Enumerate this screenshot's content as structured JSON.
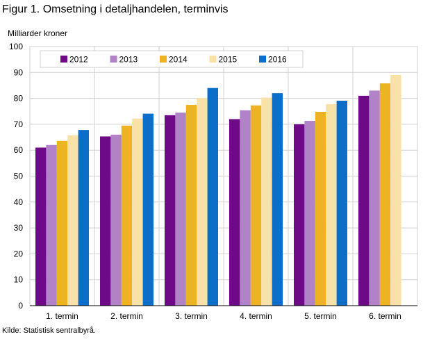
{
  "header": {
    "title": "Figur 1. Omsetning i detaljhandelen, terminvis",
    "unit_label": "Milliarder  kroner"
  },
  "footer": {
    "source": "Kilde: Statistisk sentralbyrå."
  },
  "chart_data": {
    "type": "bar",
    "title": "",
    "xlabel": "",
    "ylabel": "Milliarder  kroner",
    "ylim": [
      0,
      100
    ],
    "yticks": [
      0,
      10,
      20,
      30,
      40,
      50,
      60,
      70,
      80,
      90,
      100
    ],
    "grid": true,
    "legend_position": "top-left",
    "categories": [
      "1. termin",
      "2. termin",
      "3. termin",
      "4. termin",
      "5. termin",
      "6. termin"
    ],
    "series": [
      {
        "name": "2012",
        "color": "#6e0a87",
        "values": [
          61.0,
          65.3,
          73.5,
          72.0,
          70.0,
          81.0
        ]
      },
      {
        "name": "2013",
        "color": "#b282c8",
        "values": [
          62.0,
          66.0,
          74.5,
          75.4,
          71.3,
          83.0
        ]
      },
      {
        "name": "2014",
        "color": "#ecb422",
        "values": [
          63.6,
          69.5,
          77.5,
          77.3,
          74.8,
          85.8
        ]
      },
      {
        "name": "2015",
        "color": "#f8e2a8",
        "values": [
          65.7,
          72.2,
          80.2,
          80.3,
          77.8,
          89.0
        ]
      },
      {
        "name": "2016",
        "color": "#0c6ec8",
        "values": [
          67.8,
          74.1,
          84.0,
          82.0,
          79.1,
          null
        ]
      }
    ]
  }
}
